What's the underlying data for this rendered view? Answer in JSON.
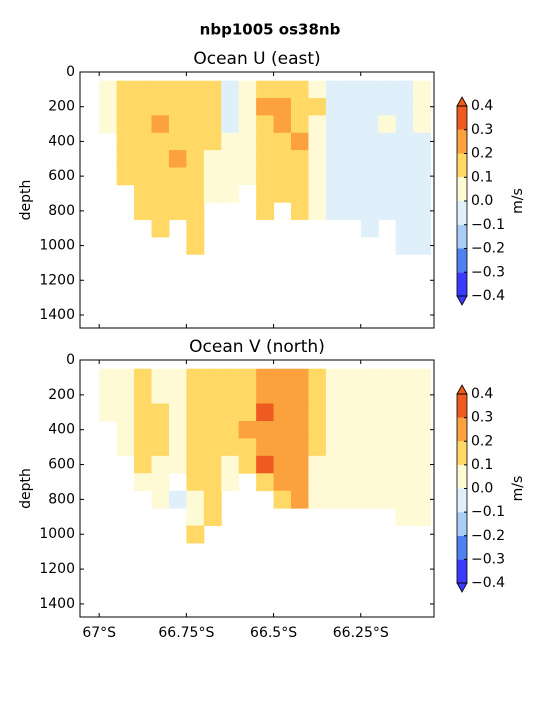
{
  "title": "nbp1005 os38nb",
  "chart_data": [
    {
      "type": "contourf",
      "title": "Ocean U (east)",
      "ylabel": "depth",
      "colorbar_label": "m/s",
      "x": [
        -67.025,
        -66.975,
        -66.925,
        -66.875,
        -66.825,
        -66.775,
        -66.725,
        -66.675,
        -66.625,
        -66.575,
        -66.525,
        -66.475,
        -66.425,
        -66.375,
        -66.325,
        -66.275,
        -66.225,
        -66.175,
        -66.125,
        -66.075
      ],
      "depth": [
        100,
        200,
        300,
        400,
        500,
        600,
        700,
        800,
        900,
        1000
      ],
      "values": [
        [
          null,
          0.05,
          0.15,
          0.15,
          0.15,
          0.15,
          0.15,
          0.15,
          -0.05,
          0.05,
          0.15,
          0.15,
          0.15,
          0.05,
          -0.05,
          -0.05,
          -0.05,
          -0.05,
          -0.05,
          0.05
        ],
        [
          null,
          0.05,
          0.15,
          0.15,
          0.15,
          0.15,
          0.15,
          0.15,
          -0.05,
          0.05,
          0.25,
          0.25,
          0.15,
          0.15,
          -0.05,
          -0.05,
          -0.05,
          -0.05,
          -0.05,
          0.05
        ],
        [
          null,
          0.05,
          0.15,
          0.15,
          0.25,
          0.15,
          0.15,
          0.15,
          -0.05,
          0.05,
          0.15,
          0.25,
          0.15,
          0.05,
          -0.05,
          -0.05,
          -0.05,
          0.05,
          -0.05,
          0.05
        ],
        [
          null,
          null,
          0.15,
          0.15,
          0.15,
          0.15,
          0.15,
          0.15,
          0.05,
          0.05,
          0.15,
          0.15,
          0.25,
          0.05,
          -0.05,
          -0.05,
          -0.05,
          -0.05,
          -0.05,
          -0.05
        ],
        [
          null,
          null,
          0.15,
          0.15,
          0.15,
          0.25,
          0.15,
          0.05,
          0.05,
          0.05,
          0.15,
          0.15,
          0.15,
          0.05,
          -0.05,
          -0.05,
          -0.05,
          -0.05,
          -0.05,
          -0.05
        ],
        [
          null,
          null,
          0.15,
          0.15,
          0.15,
          0.15,
          0.15,
          0.05,
          0.05,
          0.05,
          0.15,
          0.15,
          0.15,
          0.05,
          -0.05,
          -0.05,
          -0.05,
          -0.05,
          -0.05,
          -0.05
        ],
        [
          null,
          null,
          null,
          0.15,
          0.15,
          0.15,
          0.15,
          0.05,
          0.05,
          null,
          0.15,
          0.15,
          0.15,
          0.05,
          -0.05,
          -0.05,
          -0.05,
          -0.05,
          -0.05,
          -0.05
        ],
        [
          null,
          null,
          null,
          0.15,
          0.15,
          0.15,
          0.15,
          null,
          null,
          null,
          0.15,
          null,
          0.15,
          0.05,
          -0.05,
          -0.05,
          -0.05,
          -0.05,
          -0.05,
          -0.05
        ],
        [
          null,
          null,
          null,
          null,
          0.15,
          null,
          0.15,
          null,
          null,
          null,
          null,
          null,
          null,
          null,
          null,
          null,
          -0.05,
          null,
          -0.05,
          -0.05
        ],
        [
          null,
          null,
          null,
          null,
          null,
          null,
          0.15,
          null,
          null,
          null,
          null,
          null,
          null,
          null,
          null,
          null,
          null,
          null,
          -0.05,
          -0.05
        ]
      ],
      "xlim": [
        -67.055,
        -66.04
      ],
      "ylim": [
        1475,
        0
      ],
      "xticks": [
        -67,
        -66.75,
        -66.5,
        -66.25
      ],
      "yticks": [
        0,
        200,
        400,
        600,
        800,
        1000,
        1200,
        1400
      ],
      "levels": [
        {
          "value": -0.4,
          "label": "−0.4"
        },
        {
          "value": -0.3,
          "label": "−0.3"
        },
        {
          "value": -0.2,
          "label": "−0.2"
        },
        {
          "value": -0.1,
          "label": "−0.1"
        },
        {
          "value": 0,
          "label": "0.0"
        },
        0.1,
        0.2,
        0.3,
        0.4
      ],
      "colors": [
        "#3a3aff",
        "#4f82ee",
        "#a8cdf6",
        "#dff0fa",
        "#fffad6",
        "#ffd866",
        "#fba13e",
        "#ee5a20"
      ]
    },
    {
      "type": "contourf",
      "title": "Ocean V (north)",
      "ylabel": "depth",
      "colorbar_label": "m/s",
      "x": [
        -67.025,
        -66.975,
        -66.925,
        -66.875,
        -66.825,
        -66.775,
        -66.725,
        -66.675,
        -66.625,
        -66.575,
        -66.525,
        -66.475,
        -66.425,
        -66.375,
        -66.325,
        -66.275,
        -66.225,
        -66.175,
        -66.125,
        -66.075
      ],
      "depth": [
        100,
        200,
        300,
        400,
        500,
        600,
        700,
        800,
        900,
        1000
      ],
      "values": [
        [
          null,
          0.05,
          0.05,
          0.15,
          0.05,
          0.05,
          0.15,
          0.15,
          0.15,
          0.15,
          0.25,
          0.25,
          0.25,
          0.15,
          0.05,
          0.05,
          0.05,
          0.05,
          0.05,
          0.05
        ],
        [
          null,
          0.05,
          0.05,
          0.15,
          0.05,
          0.05,
          0.15,
          0.15,
          0.15,
          0.15,
          0.25,
          0.25,
          0.25,
          0.15,
          0.05,
          0.05,
          0.05,
          0.05,
          0.05,
          0.05
        ],
        [
          null,
          0.05,
          0.05,
          0.15,
          0.15,
          0.05,
          0.15,
          0.15,
          0.15,
          0.15,
          0.35,
          0.25,
          0.25,
          0.15,
          0.05,
          0.05,
          0.05,
          0.05,
          0.05,
          0.05
        ],
        [
          null,
          null,
          0.05,
          0.15,
          0.15,
          0.05,
          0.15,
          0.15,
          0.15,
          0.25,
          0.25,
          0.25,
          0.25,
          0.15,
          0.05,
          0.05,
          0.05,
          0.05,
          0.05,
          0.05
        ],
        [
          null,
          null,
          0.05,
          0.15,
          0.15,
          0.05,
          0.15,
          0.15,
          0.15,
          0.15,
          0.25,
          0.25,
          0.25,
          0.15,
          0.05,
          0.05,
          0.05,
          0.05,
          0.05,
          0.05
        ],
        [
          null,
          null,
          null,
          0.15,
          0.05,
          0.05,
          0.15,
          0.15,
          0.05,
          0.15,
          0.35,
          0.25,
          0.25,
          0.05,
          0.05,
          0.05,
          0.05,
          0.05,
          0.05,
          0.05
        ],
        [
          null,
          null,
          null,
          0.05,
          0.05,
          null,
          0.15,
          0.15,
          0.05,
          null,
          0.15,
          0.25,
          0.25,
          0.05,
          0.05,
          0.05,
          0.05,
          0.05,
          0.05,
          0.05
        ],
        [
          null,
          null,
          null,
          null,
          0.05,
          -0.05,
          0.05,
          0.15,
          null,
          null,
          null,
          0.15,
          0.25,
          0.05,
          0.05,
          0.05,
          0.05,
          0.05,
          0.05,
          0.05
        ],
        [
          null,
          null,
          null,
          null,
          null,
          null,
          0.05,
          0.15,
          null,
          null,
          null,
          null,
          null,
          null,
          null,
          null,
          null,
          null,
          0.05,
          0.05
        ],
        [
          null,
          null,
          null,
          null,
          null,
          null,
          0.15,
          null,
          null,
          null,
          null,
          null,
          null,
          null,
          null,
          null,
          null,
          null,
          null,
          null
        ]
      ],
      "xlim": [
        -67.055,
        -66.04
      ],
      "ylim": [
        1475,
        0
      ],
      "xticks": [
        {
          "value": -67,
          "label": "67°S"
        },
        {
          "value": -66.75,
          "label": "66.75°S"
        },
        {
          "value": -66.5,
          "label": "66.5°S"
        },
        {
          "value": -66.25,
          "label": "66.25°S"
        }
      ],
      "yticks": [
        0,
        200,
        400,
        600,
        800,
        1000,
        1200,
        1400
      ],
      "levels": [
        {
          "value": -0.4,
          "label": "−0.4"
        },
        {
          "value": -0.3,
          "label": "−0.3"
        },
        {
          "value": -0.2,
          "label": "−0.2"
        },
        {
          "value": -0.1,
          "label": "−0.1"
        },
        {
          "value": 0,
          "label": "0.0"
        },
        0.1,
        0.2,
        0.3,
        0.4
      ],
      "colors": [
        "#3a3aff",
        "#4f82ee",
        "#a8cdf6",
        "#dff0fa",
        "#fffad6",
        "#ffd866",
        "#fba13e",
        "#ee5a20"
      ]
    }
  ]
}
